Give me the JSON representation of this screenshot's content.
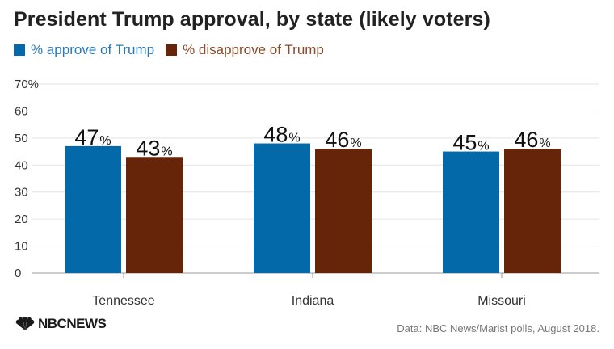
{
  "header": {
    "title": "President Trump approval, by state (likely voters)"
  },
  "legend": [
    {
      "label": "% approve of Trump",
      "color": "#0369a9",
      "text_color": "#2a7ab8"
    },
    {
      "label": "% disapprove of Trump",
      "color": "#662508",
      "text_color": "#8a4a2a"
    }
  ],
  "chart_data": {
    "type": "bar",
    "title": "President Trump approval, by state (likely voters)",
    "categories": [
      "Tennessee",
      "Indiana",
      "Missouri"
    ],
    "series": [
      {
        "name": "% approve of Trump",
        "values": [
          47,
          48,
          45
        ],
        "color": "#0369a9"
      },
      {
        "name": "% disapprove of Trump",
        "values": [
          43,
          46,
          46
        ],
        "color": "#662508"
      }
    ],
    "value_suffix": "%",
    "ylim": [
      0,
      70
    ],
    "yticks": [
      "0",
      "10",
      "20",
      "30",
      "40",
      "50",
      "60",
      "70%"
    ],
    "ytick_values": [
      0,
      10,
      20,
      30,
      40,
      50,
      60,
      70
    ],
    "grid": true,
    "xlabel": "",
    "ylabel": "",
    "legend_position": "top-left"
  },
  "footer": {
    "source": "Data: NBC News/Marist polls, August 2018.",
    "logo_text": "NBCNEWS"
  }
}
